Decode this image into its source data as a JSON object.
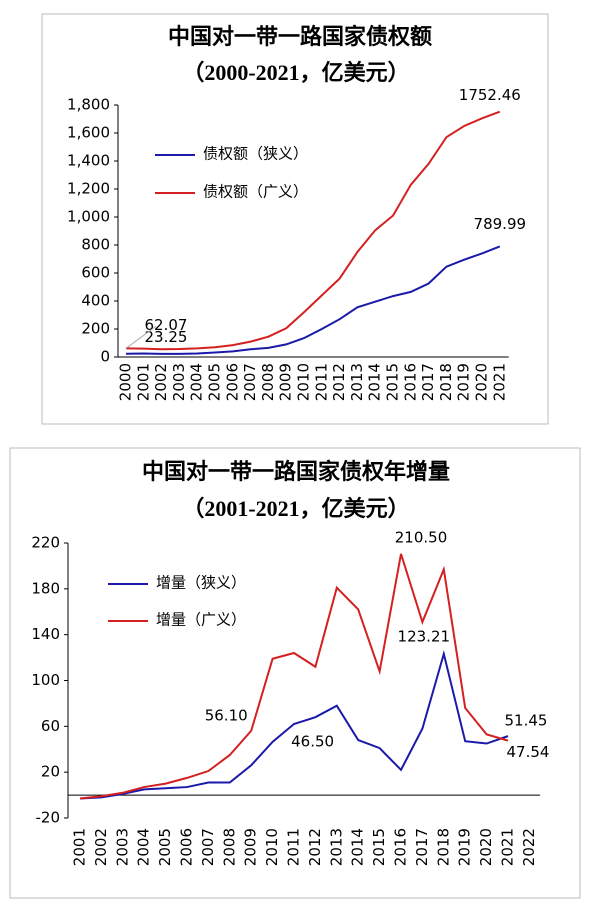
{
  "chart_data": [
    {
      "type": "line",
      "title": "中国对一带一路国家债权额",
      "subtitle": "（2000-2021，亿美元）",
      "categories": [
        "2000",
        "2001",
        "2002",
        "2003",
        "2004",
        "2005",
        "2006",
        "2007",
        "2008",
        "2009",
        "2010",
        "2011",
        "2012",
        "2013",
        "2014",
        "2015",
        "2016",
        "2017",
        "2018",
        "2019",
        "2020",
        "2021"
      ],
      "series": [
        {
          "name": "债权额（狭义）",
          "color": "#1a1aaa",
          "values": [
            23.25,
            25,
            22,
            22,
            25,
            32,
            40,
            55,
            65,
            90,
            135,
            200,
            270,
            355,
            395,
            435,
            465,
            525,
            645,
            695,
            740,
            789.99
          ],
          "value_labels": [
            "23.25",
            null,
            null,
            null,
            null,
            null,
            null,
            null,
            null,
            null,
            null,
            null,
            null,
            null,
            null,
            null,
            null,
            null,
            null,
            null,
            null,
            "789.99"
          ]
        },
        {
          "name": "债权额（广义）",
          "color": "#d42020",
          "values": [
            62.07,
            60,
            55,
            57,
            62,
            70,
            85,
            110,
            145,
            205,
            320,
            440,
            560,
            750,
            905,
            1010,
            1230,
            1380,
            1570,
            1650,
            1705,
            1752.46
          ],
          "value_labels": [
            "62.07",
            null,
            null,
            null,
            null,
            null,
            null,
            null,
            null,
            null,
            null,
            null,
            null,
            null,
            null,
            null,
            null,
            null,
            null,
            null,
            null,
            "1752.46"
          ]
        }
      ],
      "ylim": [
        0,
        1800
      ],
      "yticks": [
        0,
        200,
        400,
        600,
        800,
        {
          "value": 1000,
          "label": "1,000"
        },
        {
          "value": 1200,
          "label": "1,200"
        },
        {
          "value": 1400,
          "label": "1,400"
        },
        {
          "value": 1600,
          "label": "1,600"
        },
        {
          "value": 1800,
          "label": "1,800"
        }
      ]
    },
    {
      "type": "line",
      "title": "中国对一带一路国家债权年增量",
      "subtitle": "（2001-2021，亿美元）",
      "categories": [
        "2001",
        "2002",
        "2003",
        "2004",
        "2005",
        "2006",
        "2007",
        "2008",
        "2009",
        "2010",
        "2011",
        "2012",
        "2013",
        "2014",
        "2015",
        "2016",
        "2017",
        "2018",
        "2019",
        "2020",
        "2021",
        "2022"
      ],
      "series": [
        {
          "name": "增量（狭义）",
          "color": "#1a1aaa",
          "values": [
            -3,
            -2,
            1,
            5,
            6,
            7,
            11,
            11,
            26,
            46.5,
            62,
            68,
            78,
            48,
            41,
            22,
            58,
            123.21,
            47,
            45,
            51.45,
            null
          ],
          "value_labels": [
            null,
            null,
            null,
            null,
            null,
            null,
            null,
            null,
            null,
            "46.50",
            null,
            null,
            null,
            null,
            null,
            null,
            null,
            "123.21",
            null,
            null,
            "51.45",
            null
          ]
        },
        {
          "name": "增量（广义）",
          "color": "#d42020",
          "values": [
            -3,
            -1,
            2,
            7,
            10,
            15,
            21,
            35,
            56.1,
            119,
            124,
            112,
            181,
            162,
            108,
            210.5,
            151,
            197,
            76,
            53,
            47.54,
            null
          ],
          "value_labels": [
            null,
            null,
            null,
            null,
            null,
            null,
            null,
            null,
            "56.10",
            null,
            null,
            null,
            null,
            null,
            null,
            "210.50",
            null,
            null,
            null,
            null,
            "47.54",
            null
          ]
        }
      ],
      "ylim": [
        -20,
        220
      ],
      "yticks": [
        -20,
        20,
        60,
        100,
        140,
        180,
        220
      ]
    }
  ]
}
